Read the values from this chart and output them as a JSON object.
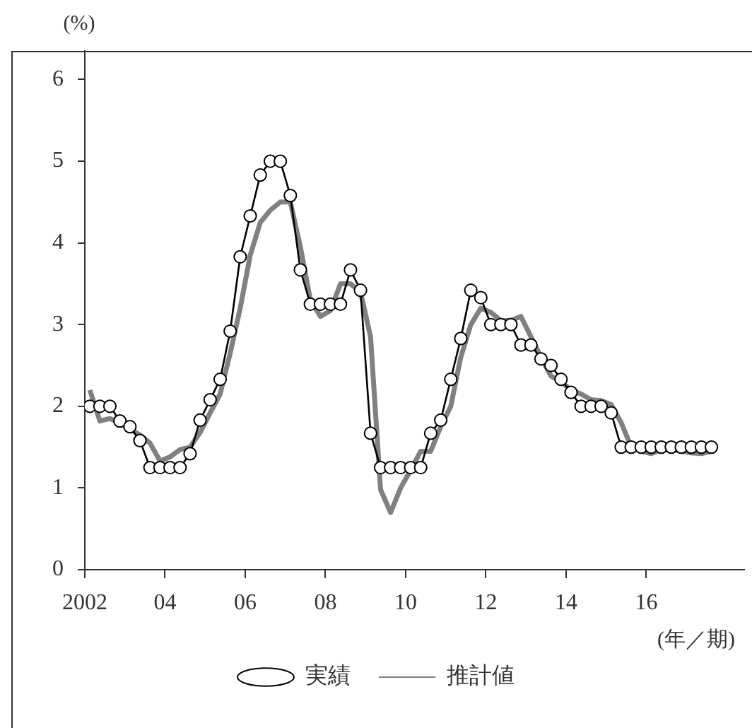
{
  "chart_data": {
    "type": "line",
    "ylabel": "(%)",
    "xlabel": "(年／期)",
    "x": [
      2002.125,
      2002.375,
      2002.625,
      2002.875,
      2003.125,
      2003.375,
      2003.625,
      2003.875,
      2004.125,
      2004.375,
      2004.625,
      2004.875,
      2005.125,
      2005.375,
      2005.625,
      2005.875,
      2006.125,
      2006.375,
      2006.625,
      2006.875,
      2007.125,
      2007.375,
      2007.625,
      2007.875,
      2008.125,
      2008.375,
      2008.625,
      2008.875,
      2009.125,
      2009.375,
      2009.625,
      2009.875,
      2010.125,
      2010.375,
      2010.625,
      2010.875,
      2011.125,
      2011.375,
      2011.625,
      2011.875,
      2012.125,
      2012.375,
      2012.625,
      2012.875,
      2013.125,
      2013.375,
      2013.625,
      2013.875,
      2014.125,
      2014.375,
      2014.625,
      2014.875,
      2015.125,
      2015.375,
      2015.625,
      2015.875,
      2016.125,
      2016.375,
      2016.625,
      2016.875,
      2017.125,
      2017.375,
      2017.625
    ],
    "series": [
      {
        "name": "推計値",
        "color": "#808080",
        "marker": "none",
        "values": [
          2.2,
          1.82,
          1.85,
          1.8,
          1.72,
          1.65,
          1.55,
          1.33,
          1.38,
          1.47,
          1.5,
          1.68,
          1.92,
          2.15,
          2.65,
          3.2,
          3.85,
          4.25,
          4.4,
          4.5,
          4.5,
          3.95,
          3.3,
          3.1,
          3.17,
          3.5,
          3.5,
          3.4,
          2.85,
          0.98,
          0.7,
          1.0,
          1.22,
          1.45,
          1.45,
          1.75,
          2.0,
          2.6,
          3.0,
          3.2,
          3.15,
          3.05,
          3.05,
          3.1,
          2.85,
          2.6,
          2.37,
          2.3,
          2.2,
          2.15,
          2.08,
          2.07,
          2.02,
          1.8,
          1.5,
          1.45,
          1.42,
          1.47,
          1.47,
          1.45,
          1.43,
          1.42,
          1.45
        ]
      },
      {
        "name": "実績",
        "color": "#000000",
        "marker": "circle",
        "values": [
          2.0,
          2.0,
          2.0,
          1.82,
          1.75,
          1.58,
          1.25,
          1.25,
          1.25,
          1.25,
          1.42,
          1.83,
          2.08,
          2.33,
          2.92,
          3.83,
          4.33,
          4.83,
          5.0,
          5.0,
          4.58,
          3.67,
          3.25,
          3.25,
          3.25,
          3.25,
          3.67,
          3.42,
          1.67,
          1.25,
          1.25,
          1.25,
          1.25,
          1.25,
          1.67,
          1.83,
          2.33,
          2.83,
          3.42,
          3.33,
          3.0,
          3.0,
          3.0,
          2.75,
          2.75,
          2.58,
          2.5,
          2.33,
          2.17,
          2.0,
          2.0,
          2.0,
          1.92,
          1.5,
          1.5,
          1.5,
          1.5,
          1.5,
          1.5,
          1.5,
          1.5,
          1.5,
          1.5
        ]
      }
    ],
    "xlim": [
      2002,
      2018.45
    ],
    "xticks": [
      {
        "value": 2002,
        "label": "2002"
      },
      {
        "value": 2004,
        "label": "04"
      },
      {
        "value": 2006,
        "label": "06"
      },
      {
        "value": 2008,
        "label": "08"
      },
      {
        "value": 2010,
        "label": "10"
      },
      {
        "value": 2012,
        "label": "12"
      },
      {
        "value": 2014,
        "label": "14"
      },
      {
        "value": 2016,
        "label": "16"
      }
    ],
    "ylim": [
      0,
      6.35
    ],
    "yticks": [
      0,
      1,
      2,
      3,
      4,
      5,
      6
    ],
    "grid": false,
    "legend": "bottom"
  }
}
